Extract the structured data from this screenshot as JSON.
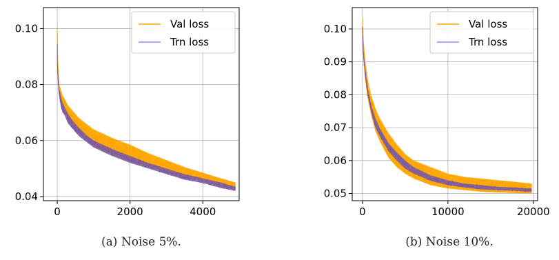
{
  "chart_data": [
    {
      "type": "line",
      "caption": "(a) Noise 5%.",
      "title": "",
      "xlabel": "",
      "ylabel": "",
      "xlim": [
        -380,
        5000
      ],
      "ylim": [
        0.0385,
        0.1075
      ],
      "xticks": [
        0,
        2000,
        4000
      ],
      "xtick_labels": [
        "0",
        "2000",
        "4000"
      ],
      "yticks": [
        0.04,
        0.06,
        0.08,
        0.1
      ],
      "ytick_labels": [
        "0.04",
        "0.06",
        "0.08",
        "0.10"
      ],
      "grid": true,
      "legend_position": "top-right",
      "x_max": 4900,
      "series": [
        {
          "name": "Val loss",
          "color": "#FFA500",
          "x": [
            0,
            10,
            20,
            40,
            60,
            100,
            150,
            200,
            300,
            400,
            600,
            800,
            1000,
            1500,
            2000,
            2500,
            3000,
            3500,
            4000,
            4500,
            4900
          ],
          "y": [
            0.105,
            0.094,
            0.088,
            0.083,
            0.08,
            0.078,
            0.076,
            0.075,
            0.0725,
            0.071,
            0.068,
            0.066,
            0.064,
            0.061,
            0.0585,
            0.0555,
            0.053,
            0.0505,
            0.0485,
            0.0465,
            0.045
          ],
          "band_low": [
            0.092,
            0.086,
            0.082,
            0.078,
            0.076,
            0.073,
            0.071,
            0.07,
            0.067,
            0.065,
            0.0625,
            0.06,
            0.058,
            0.055,
            0.0525,
            0.0505,
            0.0485,
            0.047,
            0.0455,
            0.0435,
            0.0425
          ]
        },
        {
          "name": "Trn loss",
          "color": "#7B5BA3",
          "x": [
            0,
            10,
            20,
            40,
            60,
            100,
            150,
            200,
            300,
            400,
            600,
            800,
            1000,
            1500,
            2000,
            2500,
            3000,
            3500,
            4000,
            4500,
            4900
          ],
          "y": [
            0.095,
            0.088,
            0.084,
            0.08,
            0.078,
            0.0755,
            0.0735,
            0.072,
            0.0695,
            0.0675,
            0.0645,
            0.062,
            0.06,
            0.057,
            0.0545,
            0.052,
            0.05,
            0.048,
            0.0465,
            0.045,
            0.0435
          ],
          "band_low": [
            0.09,
            0.084,
            0.08,
            0.077,
            0.075,
            0.072,
            0.07,
            0.069,
            0.066,
            0.0645,
            0.0615,
            0.0595,
            0.0575,
            0.0545,
            0.052,
            0.05,
            0.048,
            0.046,
            0.0448,
            0.043,
            0.042
          ]
        }
      ]
    },
    {
      "type": "line",
      "caption": "(b) Noise 10%.",
      "title": "",
      "xlabel": "",
      "ylabel": "",
      "xlim": [
        -1200,
        20500
      ],
      "ylim": [
        0.0478,
        0.1065
      ],
      "xticks": [
        0,
        10000,
        20000
      ],
      "xtick_labels": [
        "0",
        "10000",
        "20000"
      ],
      "yticks": [
        0.05,
        0.06,
        0.07,
        0.08,
        0.09,
        0.1
      ],
      "ytick_labels": [
        "0.05",
        "0.06",
        "0.07",
        "0.08",
        "0.09",
        "0.10"
      ],
      "grid": true,
      "legend_position": "top-right",
      "x_max": 19800,
      "series": [
        {
          "name": "Val loss",
          "color": "#FFA500",
          "x": [
            0,
            100,
            300,
            600,
            1000,
            1500,
            2000,
            3000,
            4000,
            5000,
            6000,
            8000,
            10000,
            12000,
            14000,
            16000,
            18000,
            19800
          ],
          "y": [
            0.104,
            0.098,
            0.091,
            0.085,
            0.08,
            0.076,
            0.073,
            0.0685,
            0.065,
            0.062,
            0.06,
            0.058,
            0.056,
            0.055,
            0.0545,
            0.054,
            0.0535,
            0.053
          ],
          "band_low": [
            0.097,
            0.091,
            0.085,
            0.079,
            0.074,
            0.069,
            0.066,
            0.061,
            0.058,
            0.056,
            0.0545,
            0.0525,
            0.0515,
            0.051,
            0.0505,
            0.0503,
            0.0501,
            0.05
          ]
        },
        {
          "name": "Trn loss",
          "color": "#7B5BA3",
          "x": [
            0,
            100,
            300,
            600,
            1000,
            1500,
            2000,
            3000,
            4000,
            5000,
            6000,
            8000,
            10000,
            12000,
            14000,
            16000,
            18000,
            19800
          ],
          "y": [
            0.101,
            0.094,
            0.088,
            0.082,
            0.077,
            0.073,
            0.07,
            0.0655,
            0.0625,
            0.06,
            0.058,
            0.0555,
            0.054,
            0.053,
            0.0525,
            0.052,
            0.0518,
            0.0515
          ],
          "band_low": [
            0.098,
            0.092,
            0.086,
            0.08,
            0.075,
            0.07,
            0.0675,
            0.063,
            0.06,
            0.0575,
            0.056,
            0.0538,
            0.0525,
            0.0518,
            0.0512,
            0.051,
            0.0508,
            0.0505
          ]
        }
      ]
    }
  ]
}
